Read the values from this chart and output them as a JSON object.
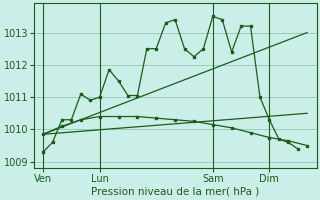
{
  "background_color": "#cceee8",
  "grid_color": "#99ccbb",
  "line_color": "#1a5c1a",
  "title": "Pression niveau de la mer( hPa )",
  "ylim": [
    1008.8,
    1013.9
  ],
  "yticks": [
    1009,
    1010,
    1011,
    1012,
    1013
  ],
  "xtick_labels": [
    "Ven",
    "Lun",
    "Sam",
    "Dim"
  ],
  "xtick_pos": [
    1,
    4,
    10,
    13
  ],
  "vline_pos": [
    1,
    4,
    10,
    13
  ],
  "series1_x": [
    1,
    1.5,
    2.0,
    2.5,
    3.0,
    3.5,
    4.0,
    4.5,
    5.0,
    5.5,
    6.0,
    6.5,
    7.0,
    7.5,
    8.0,
    8.5,
    9.0,
    9.5,
    10.0,
    10.5,
    11.0,
    11.5,
    12.0,
    12.5,
    13.0,
    13.5,
    14.0,
    14.5
  ],
  "series1_y": [
    1009.3,
    1009.6,
    1010.3,
    1010.3,
    1011.1,
    1010.9,
    1011.0,
    1011.85,
    1011.5,
    1011.05,
    1011.05,
    1012.5,
    1012.5,
    1013.3,
    1013.4,
    1012.5,
    1012.25,
    1012.5,
    1013.5,
    1013.4,
    1012.4,
    1013.2,
    1013.2,
    1011.0,
    1010.3,
    1009.7,
    1009.6,
    1009.4
  ],
  "series2_x": [
    1,
    2,
    3,
    4,
    5,
    6,
    7,
    8,
    9,
    10,
    11,
    12,
    13,
    14,
    15
  ],
  "series2_y": [
    1009.85,
    1010.1,
    1010.3,
    1010.4,
    1010.4,
    1010.4,
    1010.35,
    1010.3,
    1010.25,
    1010.15,
    1010.05,
    1009.9,
    1009.75,
    1009.65,
    1009.5
  ],
  "series3_x": [
    1,
    15
  ],
  "series3_y": [
    1009.85,
    1013.0
  ],
  "series4_x": [
    1,
    15
  ],
  "series4_y": [
    1009.85,
    1010.5
  ],
  "xlim": [
    0.5,
    15.5
  ]
}
